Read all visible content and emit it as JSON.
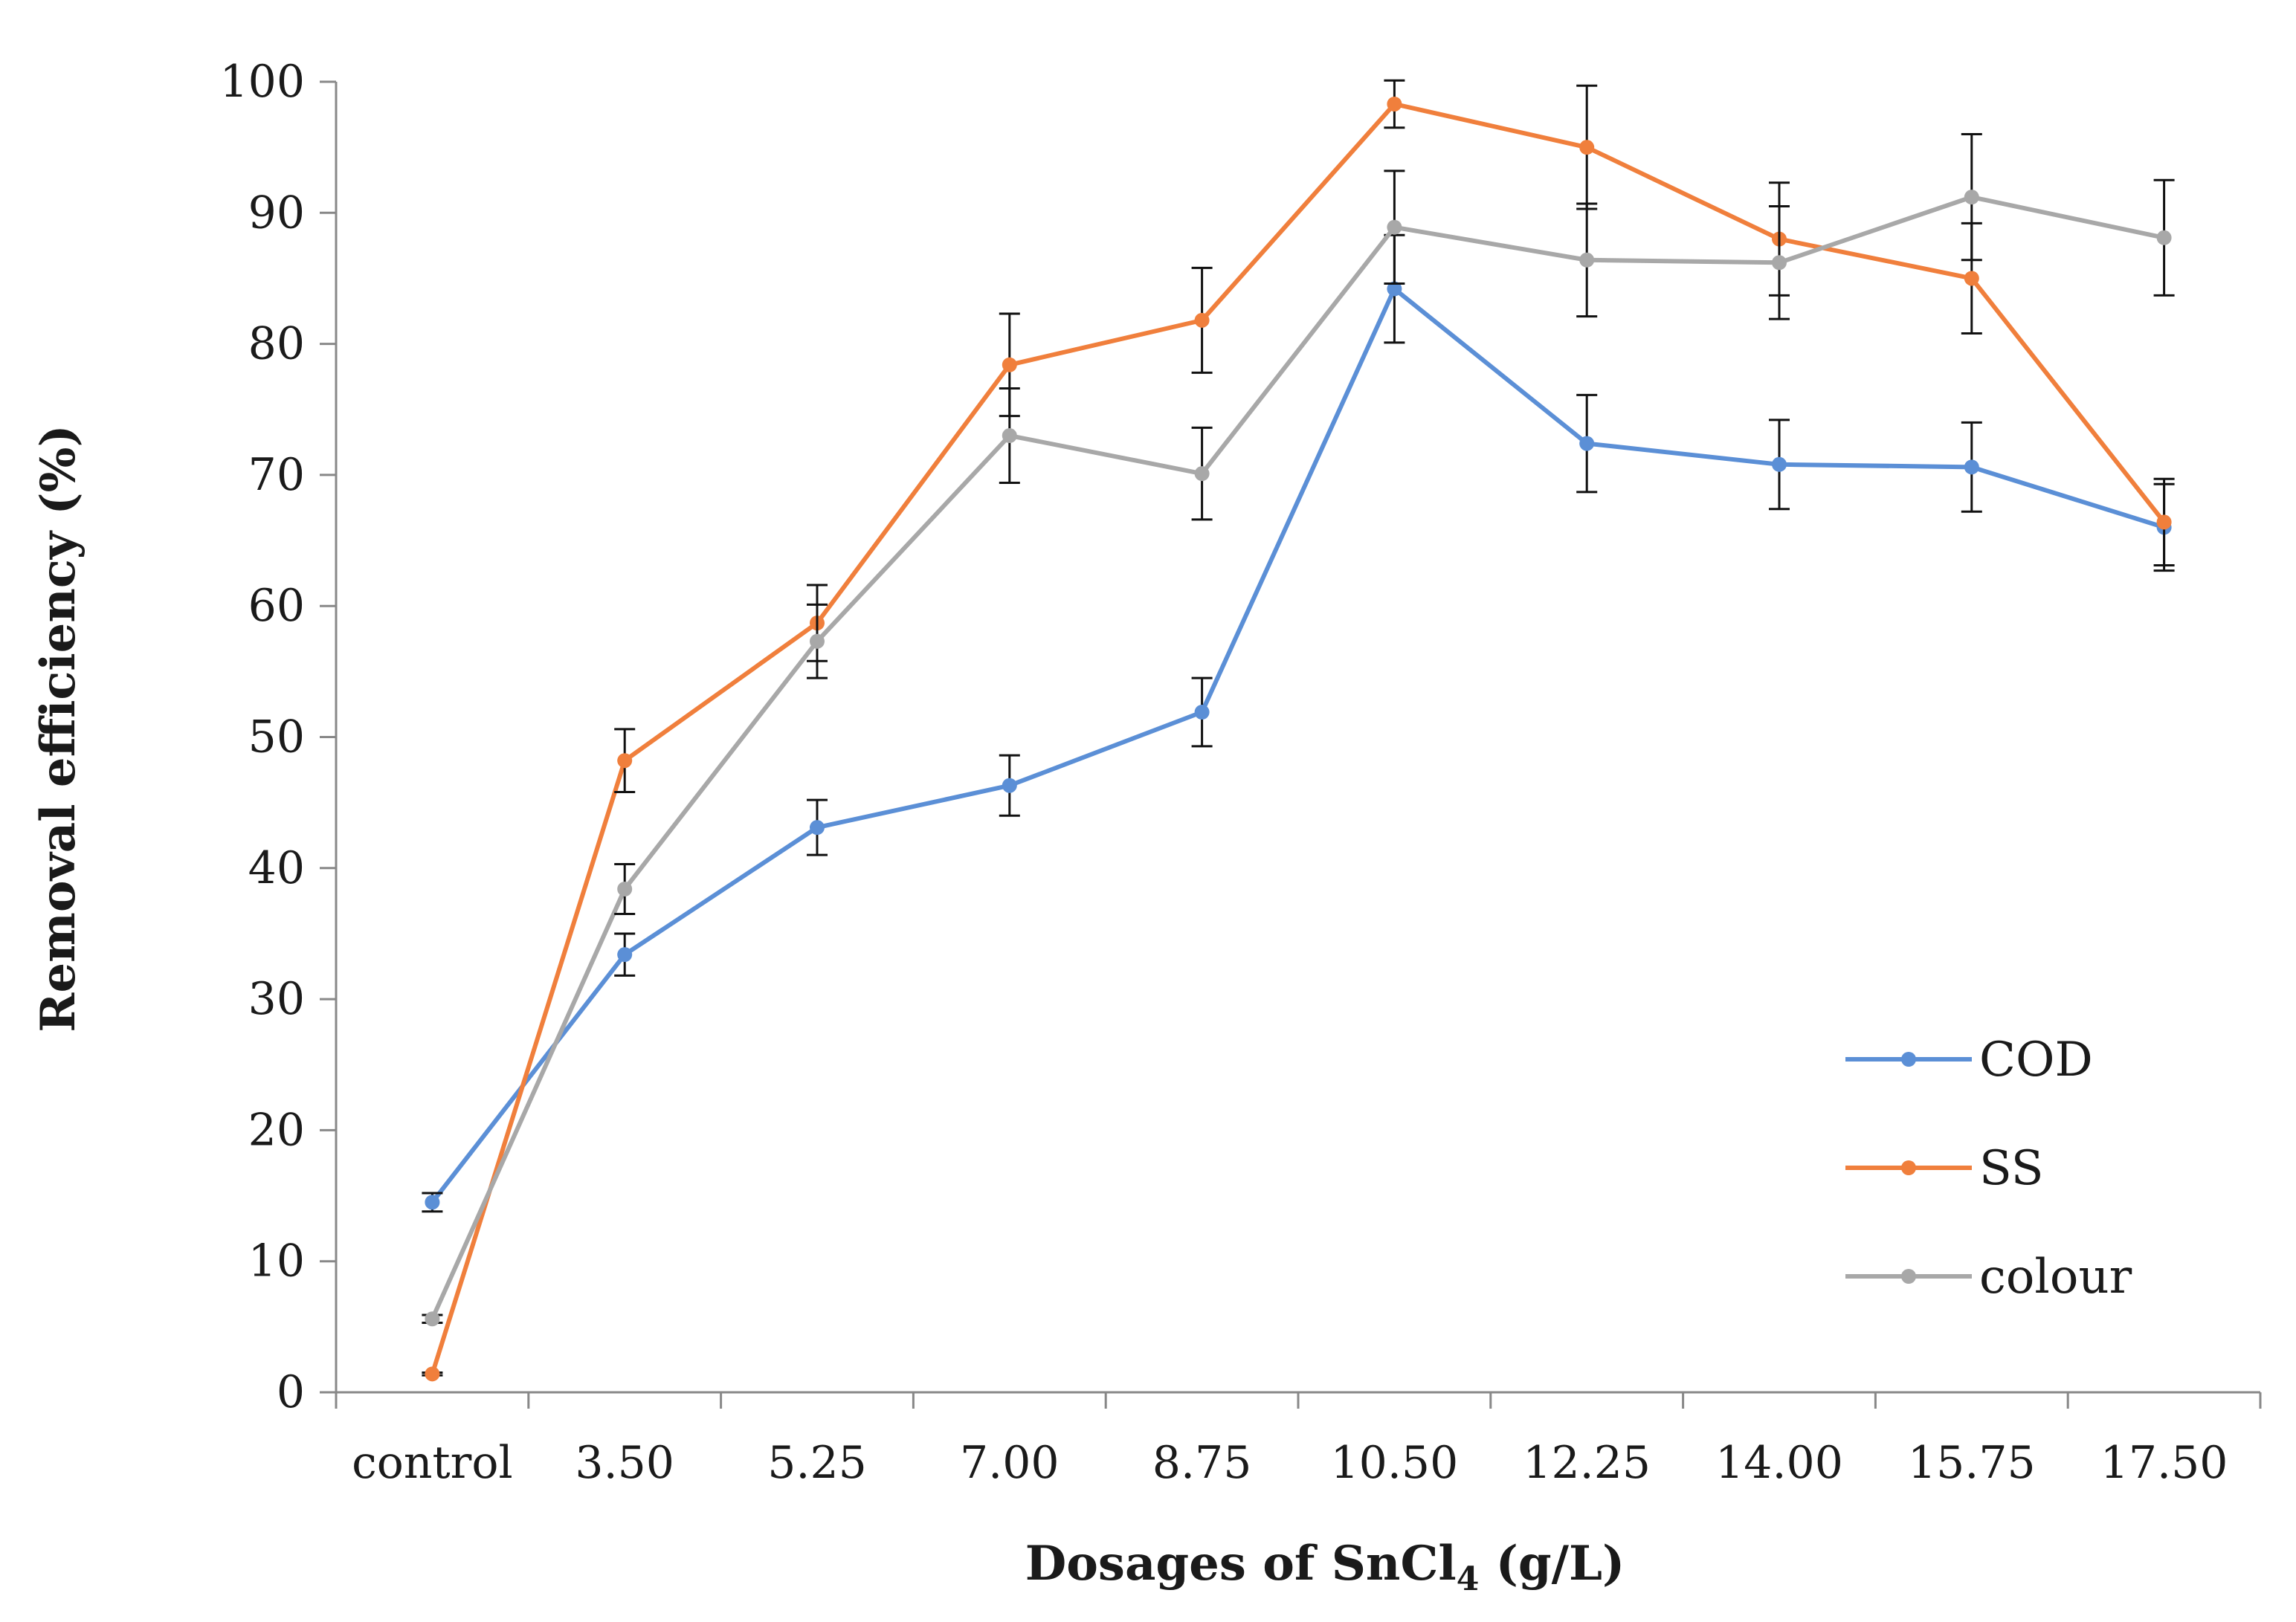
{
  "chart_data": {
    "type": "line",
    "title": "",
    "xlabel": "Dosages of SnCl",
    "xlabel_subscript": "4",
    "xlabel_suffix": " (g/L)",
    "ylabel": "Removal efficiency (%)",
    "ylim": [
      0,
      100
    ],
    "yticks": [
      0,
      10,
      20,
      30,
      40,
      50,
      60,
      70,
      80,
      90,
      100
    ],
    "grid": false,
    "legend_position": "bottom-right",
    "categories": [
      "control",
      "3.50",
      "5.25",
      "7.00",
      "8.75",
      "10.50",
      "12.25",
      "14.00",
      "15.75",
      "17.50"
    ],
    "series": [
      {
        "name": "COD",
        "color": "#5b8fd6",
        "values": [
          14.5,
          33.4,
          43.1,
          46.3,
          51.9,
          84.2,
          72.4,
          70.8,
          70.6,
          66.0
        ],
        "errors": [
          0.7,
          1.6,
          2.1,
          2.3,
          2.6,
          4.1,
          3.7,
          3.4,
          3.4,
          3.3
        ]
      },
      {
        "name": "SS",
        "color": "#f07f3c",
        "values": [
          1.4,
          48.2,
          58.7,
          78.4,
          81.8,
          98.3,
          95.0,
          88.0,
          85.0,
          66.4
        ],
        "errors": [
          0.1,
          2.4,
          2.9,
          3.9,
          4.0,
          1.8,
          4.7,
          4.3,
          4.2,
          3.3
        ]
      },
      {
        "name": "colour",
        "color": "#a8a8a8",
        "values": [
          5.6,
          38.4,
          57.3,
          73.0,
          70.1,
          88.9,
          86.4,
          86.2,
          91.2,
          88.1
        ],
        "errors": [
          0.3,
          1.9,
          2.8,
          3.6,
          3.5,
          4.3,
          4.3,
          4.3,
          4.8,
          4.4
        ]
      }
    ]
  }
}
